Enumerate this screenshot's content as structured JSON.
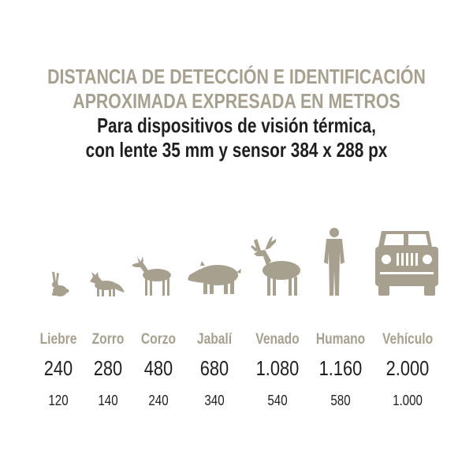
{
  "title": {
    "line1": "DISTANCIA DE DETECCIÓN E IDENTIFICACIÓN",
    "line2": "APROXIMADA EXPRESADA EN METROS"
  },
  "subtitle": {
    "line1": "Para dispositivos de visión térmica,",
    "line2": "con lente 35 mm y sensor 384 x 288 px"
  },
  "colors": {
    "accent": "#a8a08e",
    "text": "#1f1f1f"
  },
  "targets": [
    {
      "name": "Liebre",
      "detection": "240",
      "identification": "120",
      "icon": "hare-icon"
    },
    {
      "name": "Zorro",
      "detection": "280",
      "identification": "140",
      "icon": "fox-icon"
    },
    {
      "name": "Corzo",
      "detection": "480",
      "identification": "240",
      "icon": "roe-deer-icon"
    },
    {
      "name": "Jabalí",
      "detection": "680",
      "identification": "340",
      "icon": "wild-boar-icon"
    },
    {
      "name": "Venado",
      "detection": "1.080",
      "identification": "540",
      "icon": "stag-icon"
    },
    {
      "name": "Humano",
      "detection": "1.160",
      "identification": "580",
      "icon": "human-icon"
    },
    {
      "name": "Vehículo",
      "detection": "2.000",
      "identification": "1.000",
      "icon": "vehicle-icon"
    }
  ]
}
